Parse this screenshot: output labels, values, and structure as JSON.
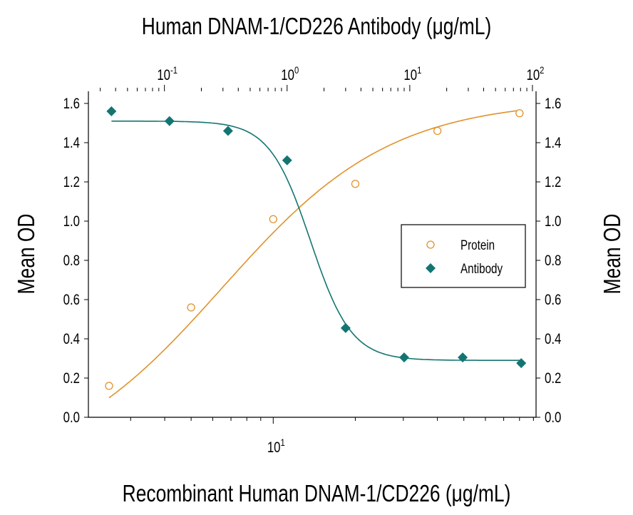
{
  "chart_data": {
    "type": "scatter",
    "title": "Human DNAM-1/CD226 Antibody (μg/mL)",
    "xlabel": "Recombinant Human DNAM-1/CD226 (μg/mL)",
    "ylabel": "Mean OD",
    "ylabel_right": "Mean OD",
    "x_bottom": {
      "scale": "log",
      "range": [
        2.1,
        92
      ],
      "tick_labels": [
        {
          "value": 10,
          "base": "10",
          "exp": "1"
        }
      ]
    },
    "x_top": {
      "scale": "log",
      "range": [
        0.024,
        107
      ],
      "tick_labels": [
        {
          "value": 0.1,
          "base": "10",
          "exp": "-1"
        },
        {
          "value": 1,
          "base": "10",
          "exp": "0"
        },
        {
          "value": 10,
          "base": "10",
          "exp": "1"
        },
        {
          "value": 100,
          "base": "10",
          "exp": "2"
        }
      ]
    },
    "ylim": [
      0,
      1.6
    ],
    "yticks": [
      "0.0",
      "0.2",
      "0.4",
      "0.6",
      "0.8",
      "1.0",
      "1.2",
      "1.4",
      "1.6"
    ],
    "grid": false,
    "legend_placement": "center-right",
    "series": [
      {
        "name": "Protein",
        "axis": "bottom",
        "marker": "open-circle",
        "color": "#e0922a",
        "x": [
          2.5,
          5,
          10,
          20,
          40,
          80
        ],
        "y": [
          0.16,
          0.56,
          1.01,
          1.19,
          1.46,
          1.55
        ]
      },
      {
        "name": "Antibody",
        "axis": "top",
        "marker": "filled-diamond",
        "color": "#137572",
        "x": [
          0.037,
          0.11,
          0.33,
          1,
          3,
          9,
          27,
          81
        ],
        "y": [
          1.56,
          1.51,
          1.46,
          1.31,
          0.455,
          0.305,
          0.305,
          0.276
        ]
      }
    ]
  }
}
